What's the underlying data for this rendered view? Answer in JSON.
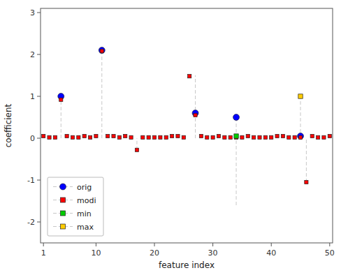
{
  "chart_data": {
    "type": "scatter",
    "xlabel": "feature index",
    "ylabel": "coefficient",
    "xlim": [
      0.5,
      50.5
    ],
    "ylim": [
      -2.5,
      3.1
    ],
    "xticks": [
      1,
      10,
      20,
      30,
      40,
      50
    ],
    "yticks": [
      -2,
      -1,
      0,
      1,
      2,
      3
    ],
    "grid": false,
    "legend": "lower left",
    "series": [
      {
        "name": "orig",
        "color": "#0000ff",
        "marker": "circle",
        "x": [
          4,
          11,
          27,
          34,
          45
        ],
        "values": [
          1.0,
          2.1,
          0.6,
          0.5,
          0.05
        ]
      },
      {
        "name": "modi",
        "color": "#ff0000",
        "marker": "square",
        "x": [
          1,
          2,
          3,
          4,
          5,
          6,
          7,
          8,
          9,
          10,
          11,
          12,
          13,
          14,
          15,
          16,
          17,
          18,
          19,
          20,
          21,
          22,
          23,
          24,
          25,
          26,
          27,
          28,
          29,
          30,
          31,
          32,
          33,
          34,
          35,
          36,
          37,
          38,
          39,
          40,
          41,
          42,
          43,
          44,
          45,
          46,
          47,
          48,
          49,
          50
        ],
        "values": [
          0.05,
          0.02,
          0.02,
          0.92,
          0.05,
          0.02,
          0.02,
          0.05,
          0.02,
          0.05,
          2.08,
          0.05,
          0.05,
          0.02,
          0.05,
          0.02,
          -0.28,
          0.02,
          0.02,
          0.02,
          0.02,
          0.02,
          0.05,
          0.05,
          0.02,
          1.48,
          0.55,
          0.05,
          0.02,
          0.02,
          0.05,
          0.02,
          0.02,
          0.02,
          0.02,
          0.05,
          0.02,
          0.02,
          0.02,
          0.02,
          0.05,
          0.05,
          0.02,
          0.02,
          0.02,
          -1.05,
          0.05,
          0.02,
          0.02,
          0.05
        ]
      },
      {
        "name": "min",
        "color": "#00cc00",
        "marker": "square",
        "x": [
          34
        ],
        "values": [
          0.05
        ]
      },
      {
        "name": "max",
        "color": "#ffcc00",
        "marker": "square",
        "x": [
          45
        ],
        "values": [
          1.0
        ]
      }
    ],
    "stems": {
      "x": [
        4,
        11,
        17,
        27,
        34,
        45,
        46
      ],
      "top": [
        1.0,
        2.1,
        0.0,
        1.5,
        0.5,
        1.0,
        0.0
      ],
      "bottom": [
        0.0,
        0.0,
        -0.28,
        0.0,
        -1.6,
        0.0,
        -1.05
      ],
      "color": "#c8c8c8",
      "line_style": "dashed"
    }
  }
}
